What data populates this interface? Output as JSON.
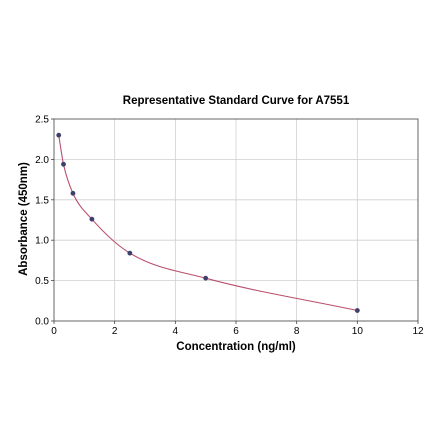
{
  "chart_data": {
    "type": "scatter",
    "title": "Representative Standard Curve for A7551",
    "xlabel": "Concentration (ng/ml)",
    "ylabel": "Absorbance (450nm)",
    "xlim": [
      0,
      12
    ],
    "ylim": [
      0,
      2.5
    ],
    "xticks": [
      0,
      2,
      4,
      6,
      8,
      10,
      12
    ],
    "yticks": [
      0.0,
      0.5,
      1.0,
      1.5,
      2.0,
      2.5
    ],
    "ytick_labels": [
      "0.0",
      "0.5",
      "1.0",
      "1.5",
      "2.0",
      "2.5"
    ],
    "grid": true,
    "series": [
      {
        "x": [
          0.156,
          0.313,
          0.625,
          1.25,
          2.5,
          5,
          10
        ],
        "y": [
          2.3,
          1.94,
          1.58,
          1.26,
          0.84,
          0.53,
          0.13
        ],
        "color": "#3f3f6e",
        "fit_color": "#b8506b"
      }
    ]
  }
}
